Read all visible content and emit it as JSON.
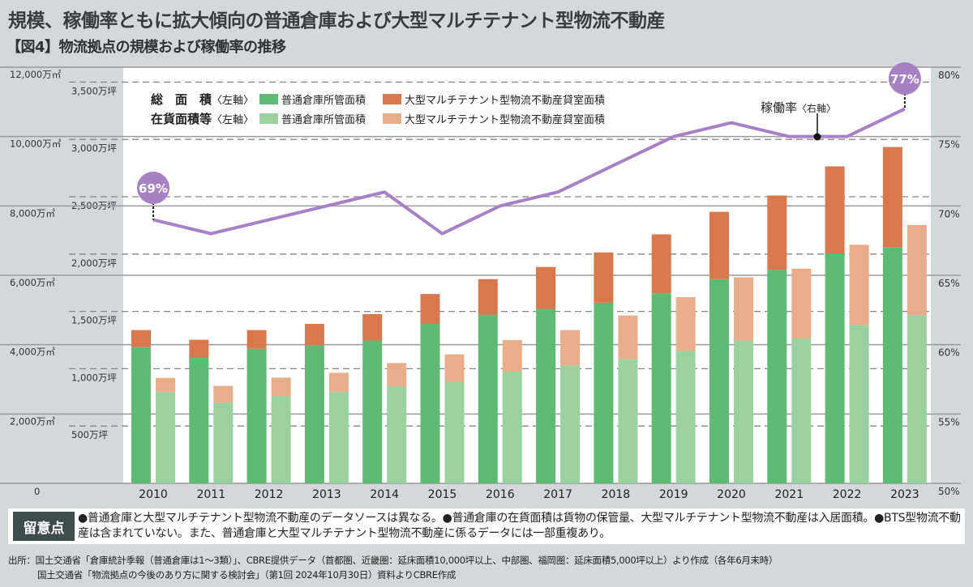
{
  "title": "規模、稼働率ともに拡大傾向の普通倉庫および大型マルチテナント型物流不動産",
  "subtitle": "【図4】物流拠点の規模および稼働率の推移",
  "colors": {
    "total_warehouse": "#5fba76",
    "total_multitenant": "#d8784c",
    "occupied_warehouse": "#9bd1a0",
    "occupied_multitenant": "#e8ae8c",
    "occupancy_line": "#a681c4",
    "note_label_bg": "#3e4d4b"
  },
  "legend": {
    "row1_label": "総　面　積",
    "row2_label": "在貨面積等",
    "left_axis_tag": "〈左軸〉",
    "warehouse": "普通倉庫所管面積",
    "multitenant": "大型マルチテナント型物流不動産貸室面積"
  },
  "occupancy_label": {
    "name": "稼働率",
    "axis_tag": "〈右軸〉"
  },
  "badges": {
    "first": "69%",
    "last": "77%"
  },
  "chart_data": {
    "type": "bar+line",
    "categories": [
      "2010",
      "2011",
      "2012",
      "2013",
      "2014",
      "2015",
      "2016",
      "2017",
      "2018",
      "2019",
      "2020",
      "2021",
      "2022",
      "2023"
    ],
    "left_axis": {
      "unit": "万㎡",
      "ylim": [
        0,
        12000
      ],
      "ticks": [
        "0",
        "2,000万㎡",
        "4,000万㎡",
        "6,000万㎡",
        "8,000万㎡",
        "10,000万㎡",
        "12,000万㎡"
      ]
    },
    "left_axis_tsubo": {
      "unit": "万坪",
      "ticks": [
        "500万坪",
        "1,000万坪",
        "1,500万坪",
        "2,000万坪",
        "2,500万坪",
        "3,000万坪",
        "3,500万坪"
      ]
    },
    "right_axis": {
      "unit": "%",
      "ylim": [
        50,
        80
      ],
      "ticks": [
        "50%",
        "55%",
        "60%",
        "65%",
        "70%",
        "75%",
        "80%"
      ]
    },
    "series": [
      {
        "name": "総面積 普通倉庫所管面積",
        "stack": "total",
        "values": [
          3930,
          3620,
          3880,
          3990,
          4120,
          4600,
          4860,
          5030,
          5210,
          5480,
          5890,
          6160,
          6630,
          6800
        ]
      },
      {
        "name": "総面積 大型マルチテナント型物流不動産貸室面積",
        "stack": "total",
        "values": [
          490,
          520,
          540,
          610,
          760,
          860,
          1030,
          1210,
          1450,
          1700,
          1940,
          2140,
          2510,
          2900
        ]
      },
      {
        "name": "在貨面積等 普通倉庫所管面積",
        "stack": "occupied",
        "values": [
          2630,
          2330,
          2520,
          2630,
          2800,
          2930,
          3220,
          3400,
          3580,
          3820,
          4120,
          4180,
          4570,
          4850
        ]
      },
      {
        "name": "在貨面積等 大型マルチテナント型物流不動産貸室面積",
        "stack": "occupied",
        "values": [
          410,
          480,
          530,
          560,
          670,
          790,
          910,
          1020,
          1260,
          1550,
          1820,
          2010,
          2310,
          2600
        ]
      },
      {
        "name": "稼働率",
        "type": "line",
        "axis": "right",
        "values": [
          69,
          68,
          69,
          70,
          71,
          68,
          70,
          71,
          73,
          75,
          76,
          75,
          75,
          77
        ]
      }
    ],
    "grid": true
  },
  "note": {
    "label": "留意点",
    "text": "●普通倉庫と大型マルチテナント型物流不動産のデータソースは異なる。●普通倉庫の在貨面積は貨物の保管量、大型マルチテナント型物流不動産は入居面積。●BTS型物流不動産は含まれていない。また、普通倉庫と大型マルチテナント型物流不動産に係るデータには一部重複あり。"
  },
  "source": {
    "line1": "出所：国土交通省「倉庫統計季報（普通倉庫は1～3類）」、CBRE提供データ（首都圏、近畿圏：延床面積10,000坪以上、中部圏、福岡圏：延床面積5,000坪以上）より作成（各年6月末時）",
    "line2": "国土交通省「物流拠点の今後のあり方に関する検討会」（第1回 2024年10月30日）資料よりCBRE作成"
  }
}
